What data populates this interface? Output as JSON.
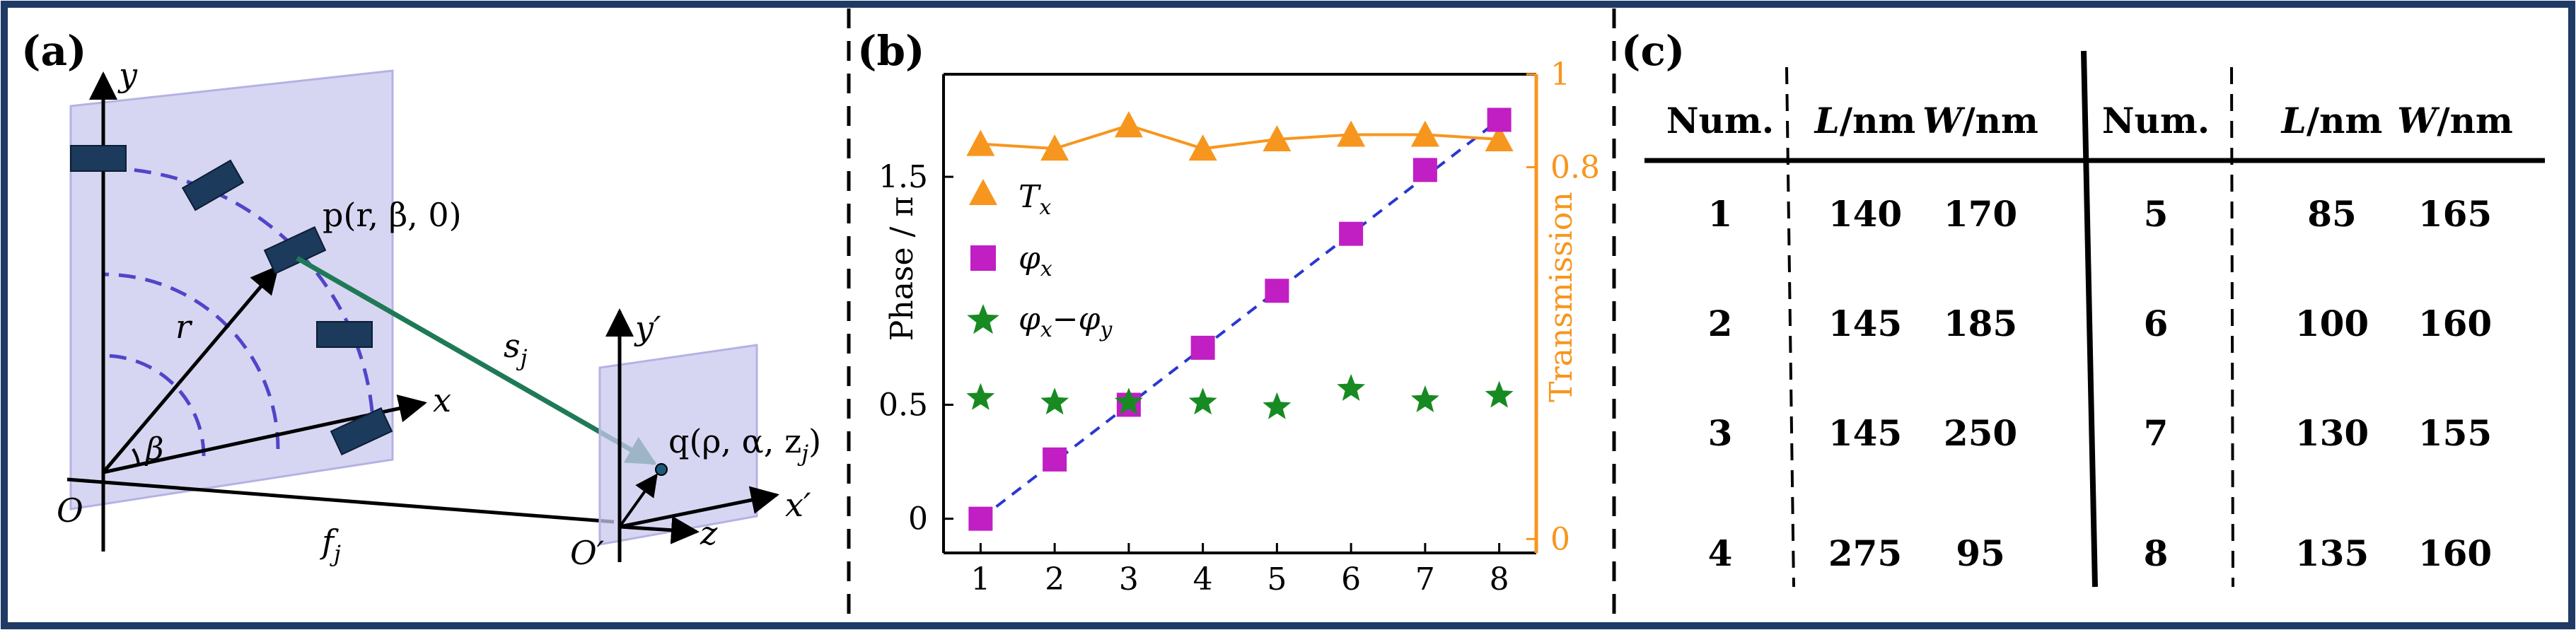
{
  "colors": {
    "border": "#1f3a64",
    "element": "#1b3a5c",
    "plane_fill": "#c9c8ee",
    "dashed_arc": "#5046c8",
    "ray": "#1e7a56",
    "orange": "#f7961e",
    "magenta": "#c11ec4",
    "green": "#178a22",
    "fit_line": "#2a37d0"
  },
  "panel_a": {
    "label": "(a)",
    "y_axis": "y",
    "x_axis": "x",
    "origin": "O",
    "beta": "β",
    "r": "r",
    "point_p": "p(r, β, 0)",
    "s": "s",
    "s_sub": "j",
    "y_prime": "y′",
    "x_prime": "x′",
    "z": "z",
    "origin_prime": "O′",
    "point_q": "q(ρ, α, z",
    "point_q_sub": "j",
    "point_q_end": ")",
    "f": "f",
    "f_sub": "j"
  },
  "panel_b": {
    "label": "(b)",
    "ylabel_left": "Phase / π",
    "ylabel_right": "Transmission",
    "legend": {
      "tx": "T",
      "tx_sub": "x",
      "phix": "φ",
      "phix_sub": "x",
      "diff_a": "φ",
      "diff_a_sub": "x",
      "diff_op": "−",
      "diff_b": "φ",
      "diff_b_sub": "y"
    }
  },
  "chart_data": {
    "type": "scatter",
    "x": [
      1,
      2,
      3,
      4,
      5,
      6,
      7,
      8
    ],
    "xticks": [
      "1",
      "2",
      "3",
      "4",
      "5",
      "6",
      "7",
      "8"
    ],
    "ylim_left": [
      -0.15,
      1.95
    ],
    "yticks_left": [
      "0",
      "0.5",
      "1.5"
    ],
    "yticks_left_values": [
      0,
      0.5,
      1.5
    ],
    "ylim_right": [
      -0.03,
      1.0
    ],
    "yticks_right": [
      "0",
      "0.8",
      "1"
    ],
    "yticks_right_values": [
      0,
      0.8,
      1.0
    ],
    "series": [
      {
        "name": "T_x",
        "axis": "right",
        "marker": "triangle",
        "line": true,
        "values": [
          0.85,
          0.84,
          0.89,
          0.84,
          0.86,
          0.87,
          0.87,
          0.86
        ]
      },
      {
        "name": "φ_x",
        "axis": "left",
        "marker": "square",
        "line": false,
        "values": [
          0.0,
          0.26,
          0.5,
          0.75,
          1.0,
          1.25,
          1.53,
          1.75
        ]
      },
      {
        "name": "φ_x − φ_y",
        "axis": "left",
        "marker": "star",
        "line": false,
        "values": [
          0.53,
          0.51,
          0.51,
          0.51,
          0.49,
          0.57,
          0.52,
          0.54
        ]
      }
    ],
    "fit_line": {
      "style": "dashed",
      "from": [
        1,
        0.0
      ],
      "to": [
        8,
        1.75
      ]
    },
    "legend_position": "left"
  },
  "panel_c": {
    "label": "(c)",
    "headers": [
      "Num.",
      "L/nm",
      "W/nm",
      "Num.",
      "L/nm",
      "W/nm"
    ],
    "rows": [
      [
        "1",
        "140",
        "170",
        "5",
        "85",
        "165"
      ],
      [
        "2",
        "145",
        "185",
        "6",
        "100",
        "160"
      ],
      [
        "3",
        "145",
        "250",
        "7",
        "130",
        "155"
      ],
      [
        "4",
        "275",
        "95",
        "8",
        "135",
        "160"
      ]
    ]
  }
}
